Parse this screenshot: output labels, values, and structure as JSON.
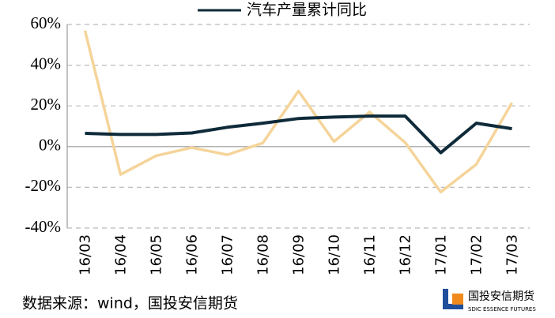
{
  "chart_data": {
    "type": "line",
    "title": "汽车产量累计同比",
    "categories": [
      "16/03",
      "16/04",
      "16/05",
      "16/06",
      "16/07",
      "16/08",
      "16/09",
      "16/10",
      "16/11",
      "16/12",
      "17/01",
      "17/02",
      "17/03"
    ],
    "series": [
      {
        "name": "汽车产量累计同比",
        "color": "#0f2b3a",
        "values": [
          6.5,
          6,
          6,
          6.7,
          9.5,
          11.5,
          13.8,
          14.5,
          15,
          15,
          -3,
          11.5,
          8.8
        ]
      },
      {
        "color": "#f5d49a",
        "values": [
          57,
          -13.7,
          -4.5,
          -0.5,
          -4,
          1.8,
          27.3,
          2.5,
          17,
          2,
          -22.3,
          -8.7,
          21.5
        ]
      }
    ],
    "ylim": [
      -40,
      60
    ],
    "yticks": [
      {
        "value": -40,
        "label": "-40%"
      },
      {
        "value": -20,
        "label": "-20%"
      },
      {
        "value": 0,
        "label": "0%"
      },
      {
        "value": 20,
        "label": "20%"
      },
      {
        "value": 40,
        "label": "40%"
      },
      {
        "value": 60,
        "label": "60%"
      }
    ],
    "grid": true,
    "source": "数据来源：wind，国投安信期货",
    "logo_text": "国投安信期货",
    "logo_subtext": "SDIC ESSENCE FUTURES"
  }
}
